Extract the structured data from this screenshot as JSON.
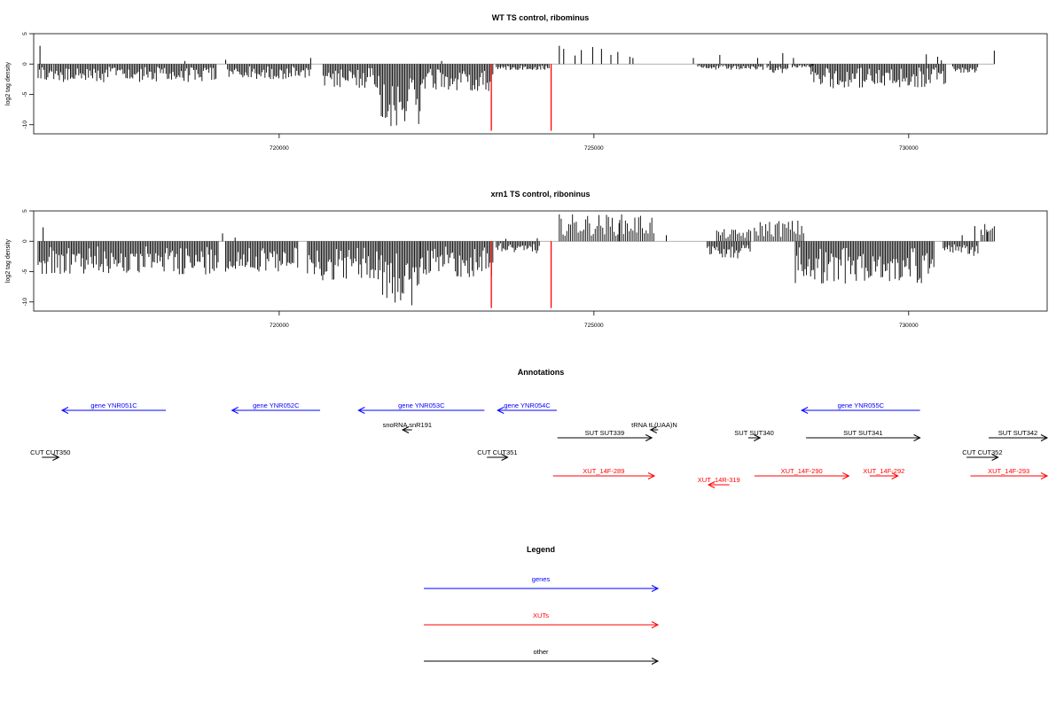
{
  "colors": {
    "gene": "#0000ff",
    "xut": "#ff0000",
    "other": "#000000",
    "spike": "#ff0000",
    "bar": "#000000",
    "baseline": "#999999"
  },
  "chart_data": [
    {
      "type": "bar",
      "title": "WT TS control, ribominus",
      "ylabel": "log2 tag density",
      "xlim": [
        716100,
        732200
      ],
      "ylim": [
        -11.5,
        5
      ],
      "xticks": [
        720000,
        725000,
        730000
      ],
      "yticks": [
        5,
        0,
        -5,
        -10
      ],
      "data_start": 716160,
      "data_end": 731360,
      "spikes": [
        {
          "x": 723370,
          "y": -11
        },
        {
          "x": 724320,
          "y": -11
        }
      ],
      "plus_peaks": [
        {
          "x": 716200,
          "y": 3
        },
        {
          "x": 718500,
          "y": 0.5
        },
        {
          "x": 719150,
          "y": 0.7
        },
        {
          "x": 720500,
          "y": 1
        },
        {
          "x": 722580,
          "y": 0.5
        },
        {
          "x": 724450,
          "y": 3
        },
        {
          "x": 724520,
          "y": 2.5
        },
        {
          "x": 724700,
          "y": 1.4
        },
        {
          "x": 724800,
          "y": 2.3
        },
        {
          "x": 724980,
          "y": 2.8
        },
        {
          "x": 725120,
          "y": 2.5
        },
        {
          "x": 725270,
          "y": 1.5
        },
        {
          "x": 725380,
          "y": 2
        },
        {
          "x": 725570,
          "y": 1.2
        },
        {
          "x": 725620,
          "y": 1
        },
        {
          "x": 726580,
          "y": 1
        },
        {
          "x": 727000,
          "y": 1.5
        },
        {
          "x": 727600,
          "y": 1
        },
        {
          "x": 727800,
          "y": 0.5
        },
        {
          "x": 728000,
          "y": 1.8
        },
        {
          "x": 728170,
          "y": 1
        },
        {
          "x": 730280,
          "y": 1.6
        },
        {
          "x": 730460,
          "y": 1.2
        },
        {
          "x": 730520,
          "y": 0.6
        },
        {
          "x": 731360,
          "y": 2.2
        }
      ],
      "regions": [
        {
          "start": 716170,
          "end": 716400,
          "depth": 3
        },
        {
          "start": 716420,
          "end": 719000,
          "depth": 3
        },
        {
          "start": 719180,
          "end": 720500,
          "depth": 2.5
        },
        {
          "start": 720700,
          "end": 721600,
          "depth": 4
        },
        {
          "start": 721600,
          "end": 722250,
          "depth": 10.5
        },
        {
          "start": 722250,
          "end": 723400,
          "depth": 4.5
        },
        {
          "start": 723450,
          "end": 724300,
          "depth": 1
        },
        {
          "start": 726650,
          "end": 727700,
          "depth": 1
        },
        {
          "start": 727750,
          "end": 728100,
          "depth": 1.5
        },
        {
          "start": 728150,
          "end": 728500,
          "depth": 0.6
        },
        {
          "start": 728450,
          "end": 730600,
          "depth": 4
        },
        {
          "start": 730700,
          "end": 731100,
          "depth": 1.5
        }
      ]
    },
    {
      "type": "bar",
      "title": "xrn1 TS control, riboninus",
      "ylabel": "log2 tag density",
      "xlim": [
        716100,
        732200
      ],
      "ylim": [
        -11.5,
        5
      ],
      "xticks": [
        720000,
        725000,
        730000
      ],
      "yticks": [
        5,
        0,
        -5,
        -10
      ],
      "data_start": 716160,
      "data_end": 731360,
      "spikes": [
        {
          "x": 723370,
          "y": -11
        },
        {
          "x": 724320,
          "y": -11
        }
      ],
      "plus_peaks": [
        {
          "x": 716250,
          "y": 2.3
        },
        {
          "x": 719100,
          "y": 1.3
        },
        {
          "x": 719300,
          "y": 0.6
        },
        {
          "x": 723600,
          "y": 0.4
        },
        {
          "x": 724100,
          "y": 0.5
        },
        {
          "x": 725400,
          "y": 3
        },
        {
          "x": 726150,
          "y": 1
        },
        {
          "x": 730850,
          "y": 1
        },
        {
          "x": 731050,
          "y": 2.5
        },
        {
          "x": 731250,
          "y": 1.5
        }
      ],
      "plus_regions": [
        {
          "start": 724450,
          "end": 725950,
          "height": 4.5
        },
        {
          "start": 726950,
          "end": 727500,
          "height": 2
        },
        {
          "start": 727550,
          "end": 728350,
          "height": 3.5
        },
        {
          "start": 731150,
          "end": 731360,
          "height": 3
        }
      ],
      "regions": [
        {
          "start": 716170,
          "end": 719050,
          "depth": 5.5
        },
        {
          "start": 719150,
          "end": 720300,
          "depth": 5
        },
        {
          "start": 720450,
          "end": 721600,
          "depth": 6.5
        },
        {
          "start": 721600,
          "end": 722250,
          "depth": 11
        },
        {
          "start": 722250,
          "end": 723400,
          "depth": 6
        },
        {
          "start": 723450,
          "end": 724150,
          "depth": 2
        },
        {
          "start": 726800,
          "end": 727500,
          "depth": 3
        },
        {
          "start": 728200,
          "end": 730400,
          "depth": 7
        },
        {
          "start": 730550,
          "end": 731100,
          "depth": 2.5
        }
      ]
    }
  ],
  "annotations": {
    "title": "Annotations",
    "features": [
      {
        "label": "gene YNR051C",
        "type": "gene",
        "start": 716550,
        "end": 718200,
        "strand": "-",
        "row": 0
      },
      {
        "label": "gene YNR052C",
        "type": "gene",
        "start": 719250,
        "end": 720650,
        "strand": "-",
        "row": 0
      },
      {
        "label": "gene YNR053C",
        "type": "gene",
        "start": 721260,
        "end": 723260,
        "strand": "-",
        "row": 0
      },
      {
        "label": "gene YNR054C",
        "type": "gene",
        "start": 723470,
        "end": 724410,
        "strand": "-",
        "row": 0
      },
      {
        "label": "gene YNR055C",
        "type": "gene",
        "start": 728300,
        "end": 730180,
        "strand": "-",
        "row": 0
      },
      {
        "label": "snoRNA snR191",
        "type": "other",
        "start": 721960,
        "end": 722110,
        "strand": "-",
        "row": 1
      },
      {
        "label": "tRNA tL(UAA)N",
        "type": "other",
        "start": 725900,
        "end": 726020,
        "strand": "-",
        "row": 1
      },
      {
        "label": "SUT SUT339",
        "type": "other",
        "start": 724420,
        "end": 725920,
        "strand": "+",
        "row": 2
      },
      {
        "label": "SUT SUT340",
        "type": "other",
        "start": 727450,
        "end": 727640,
        "strand": "+",
        "row": 2
      },
      {
        "label": "SUT SUT341",
        "type": "other",
        "start": 728370,
        "end": 730180,
        "strand": "+",
        "row": 2
      },
      {
        "label": "SUT SUT342",
        "type": "other",
        "start": 731270,
        "end": 732200,
        "strand": "+",
        "row": 2
      },
      {
        "label": "CUT CUT350",
        "type": "other",
        "start": 716230,
        "end": 716500,
        "strand": "+",
        "row": 3
      },
      {
        "label": "CUT CUT351",
        "type": "other",
        "start": 723300,
        "end": 723630,
        "strand": "+",
        "row": 3
      },
      {
        "label": "CUT CUT352",
        "type": "other",
        "start": 730920,
        "end": 731420,
        "strand": "+",
        "row": 3
      },
      {
        "label": "XUT_14F-289",
        "type": "xut",
        "start": 724350,
        "end": 725960,
        "strand": "+",
        "row": 4
      },
      {
        "label": "XUT_14F-290",
        "type": "xut",
        "start": 727550,
        "end": 729050,
        "strand": "+",
        "row": 4
      },
      {
        "label": "XUT_14F-292",
        "type": "xut",
        "start": 729380,
        "end": 729830,
        "strand": "+",
        "row": 4
      },
      {
        "label": "XUT_14F-293",
        "type": "xut",
        "start": 730980,
        "end": 732200,
        "strand": "+",
        "row": 4
      },
      {
        "label": "XUT_14R-319",
        "type": "xut",
        "start": 726820,
        "end": 727150,
        "strand": "-",
        "row": 5
      }
    ]
  },
  "legend": {
    "title": "Legend",
    "items": [
      {
        "label": "genes",
        "type": "gene"
      },
      {
        "label": "XUTs",
        "type": "xut"
      },
      {
        "label": "other",
        "type": "other"
      }
    ]
  }
}
